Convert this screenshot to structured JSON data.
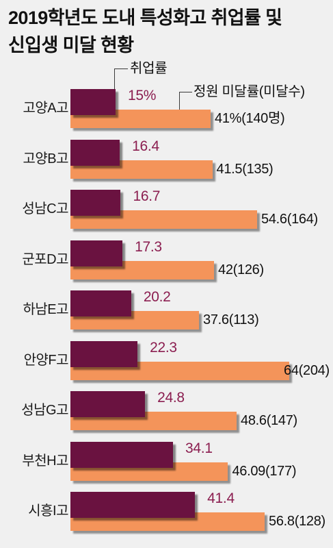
{
  "colors": {
    "background": "#f0f0f0",
    "text": "#111111",
    "leader_line": "#3a3a3a"
  },
  "chart_data": {
    "type": "bar",
    "orientation": "horizontal",
    "title": [
      "2019학년도 도내 특성화고 취업률 및",
      "신입생 미달 현황"
    ],
    "categories": [
      "고양A고",
      "고양B고",
      "성남C고",
      "군포D고",
      "하남E고",
      "안양F고",
      "성남G고",
      "부천H고",
      "시흥I고"
    ],
    "series": [
      {
        "name": "취업률",
        "color": "#6a1240",
        "label_color": "#8b1e50",
        "values": [
          15,
          16.4,
          16.7,
          17.3,
          20.2,
          22.3,
          24.8,
          34.1,
          41.4
        ],
        "labels": [
          "15%",
          "16.4",
          "16.7",
          "17.3",
          "20.2",
          "22.3",
          "24.8",
          "34.1",
          "41.4"
        ]
      },
      {
        "name": "정원 미달률(미달수)",
        "color": "#f4945a",
        "label_color": "#111111",
        "values": [
          41,
          41.5,
          54.6,
          42,
          37.6,
          64,
          48.6,
          46.09,
          56.8
        ],
        "counts": [
          140,
          135,
          164,
          126,
          113,
          204,
          147,
          177,
          128
        ],
        "labels": [
          "41%(140명)",
          "41.5(135)",
          "54.6(164)",
          "42(126)",
          "37.6(113)",
          "64(204)",
          "48.6(147)",
          "46.09(177)",
          "56.8(128)"
        ]
      }
    ],
    "grid": false,
    "legend_placement": "top"
  }
}
